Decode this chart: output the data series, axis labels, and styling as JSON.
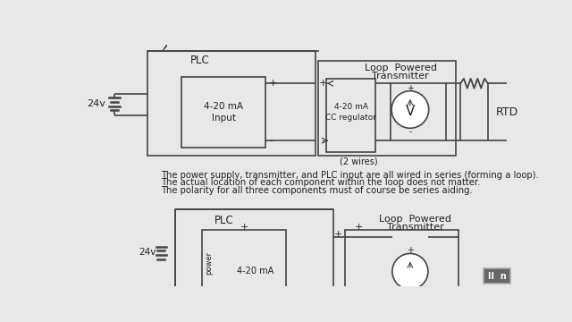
{
  "bg_color": "#e8e8e8",
  "line_color": "#444444",
  "text_color": "#222222",
  "line1": "The power supply, transmitter, and PLC input are all wired in series (forming a loop).",
  "line2": "The actual location of each component within the loop does not matter.",
  "line3": "The polarity for all three components must of course be series aiding.",
  "label_24v": "24v",
  "label_plc": "PLC",
  "label_plc2": "PLC",
  "label_loop": "Loop  Powered",
  "label_trans": "Transmitter",
  "label_loop2": "Loop  Powered",
  "label_trans2": "Transmitter",
  "label_4_20": "4-20 mA\nInput",
  "label_cc": "4-20 mA\nCC regulator",
  "label_rtd": "RTD",
  "label_2wire": "(2 wires)",
  "label_V": "V",
  "watermark_color": "#666666",
  "watermark_text": "II  n"
}
